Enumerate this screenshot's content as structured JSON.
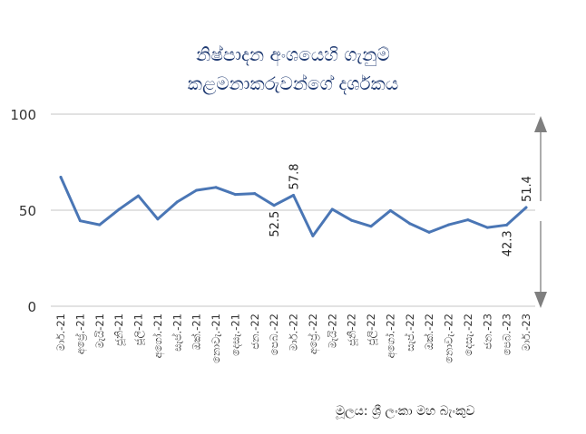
{
  "chart_data": {
    "type": "line",
    "title_lines": [
      "නිෂ්පාදන අංශයෙහි ගැනුම්",
      "කළමනාකරුවන්ගේ දර්ශකය"
    ],
    "source": "මූලය: ශ්‍රී ලංකා මහ බැංකුව",
    "categories": [
      "මාර්.-21",
      "අප්‍රේ.-21",
      "මැයි-21",
      "ජූනි-21",
      "ජූලි-21",
      "අගෝ.-21",
      "සැප්.-21",
      "ඔක්.-21",
      "නොවැ.-21",
      "දෙසැ.-21",
      "ජන.-22",
      "පෙබ.-22",
      "මාර්.-22",
      "අප්‍රේ.-22",
      "මැයි-22",
      "ජූනි-22",
      "ජූලි-22",
      "අගෝ.-22",
      "සැප්.-22",
      "ඔක්.-22",
      "නොවැ.-22",
      "දෙසැ.-22",
      "ජන.-23",
      "පෙබ.-23",
      "මාර්.-23"
    ],
    "series": [
      {
        "values": [
          67.2,
          44.5,
          42.4,
          50.4,
          57.5,
          45.4,
          54.3,
          60.4,
          61.9,
          58.2,
          58.7,
          52.5,
          57.8,
          36.6,
          50.5,
          44.7,
          41.6,
          49.8,
          43.0,
          38.5,
          42.4,
          45.0,
          41.0,
          42.3,
          51.4
        ]
      }
    ],
    "data_labels": [
      {
        "index": 11,
        "text": "52.5"
      },
      {
        "index": 12,
        "text": "57.8"
      },
      {
        "index": 23,
        "text": "42.3"
      },
      {
        "index": 24,
        "text": "51.4"
      }
    ],
    "y_ticks": [
      "0",
      "50",
      "100"
    ],
    "ylim": [
      0,
      100
    ],
    "grid": true,
    "colors": {
      "line": "#4a76b5",
      "grid": "#d9d9d9",
      "arrow": "#7f7f7f",
      "title": "#1f3a72"
    }
  }
}
